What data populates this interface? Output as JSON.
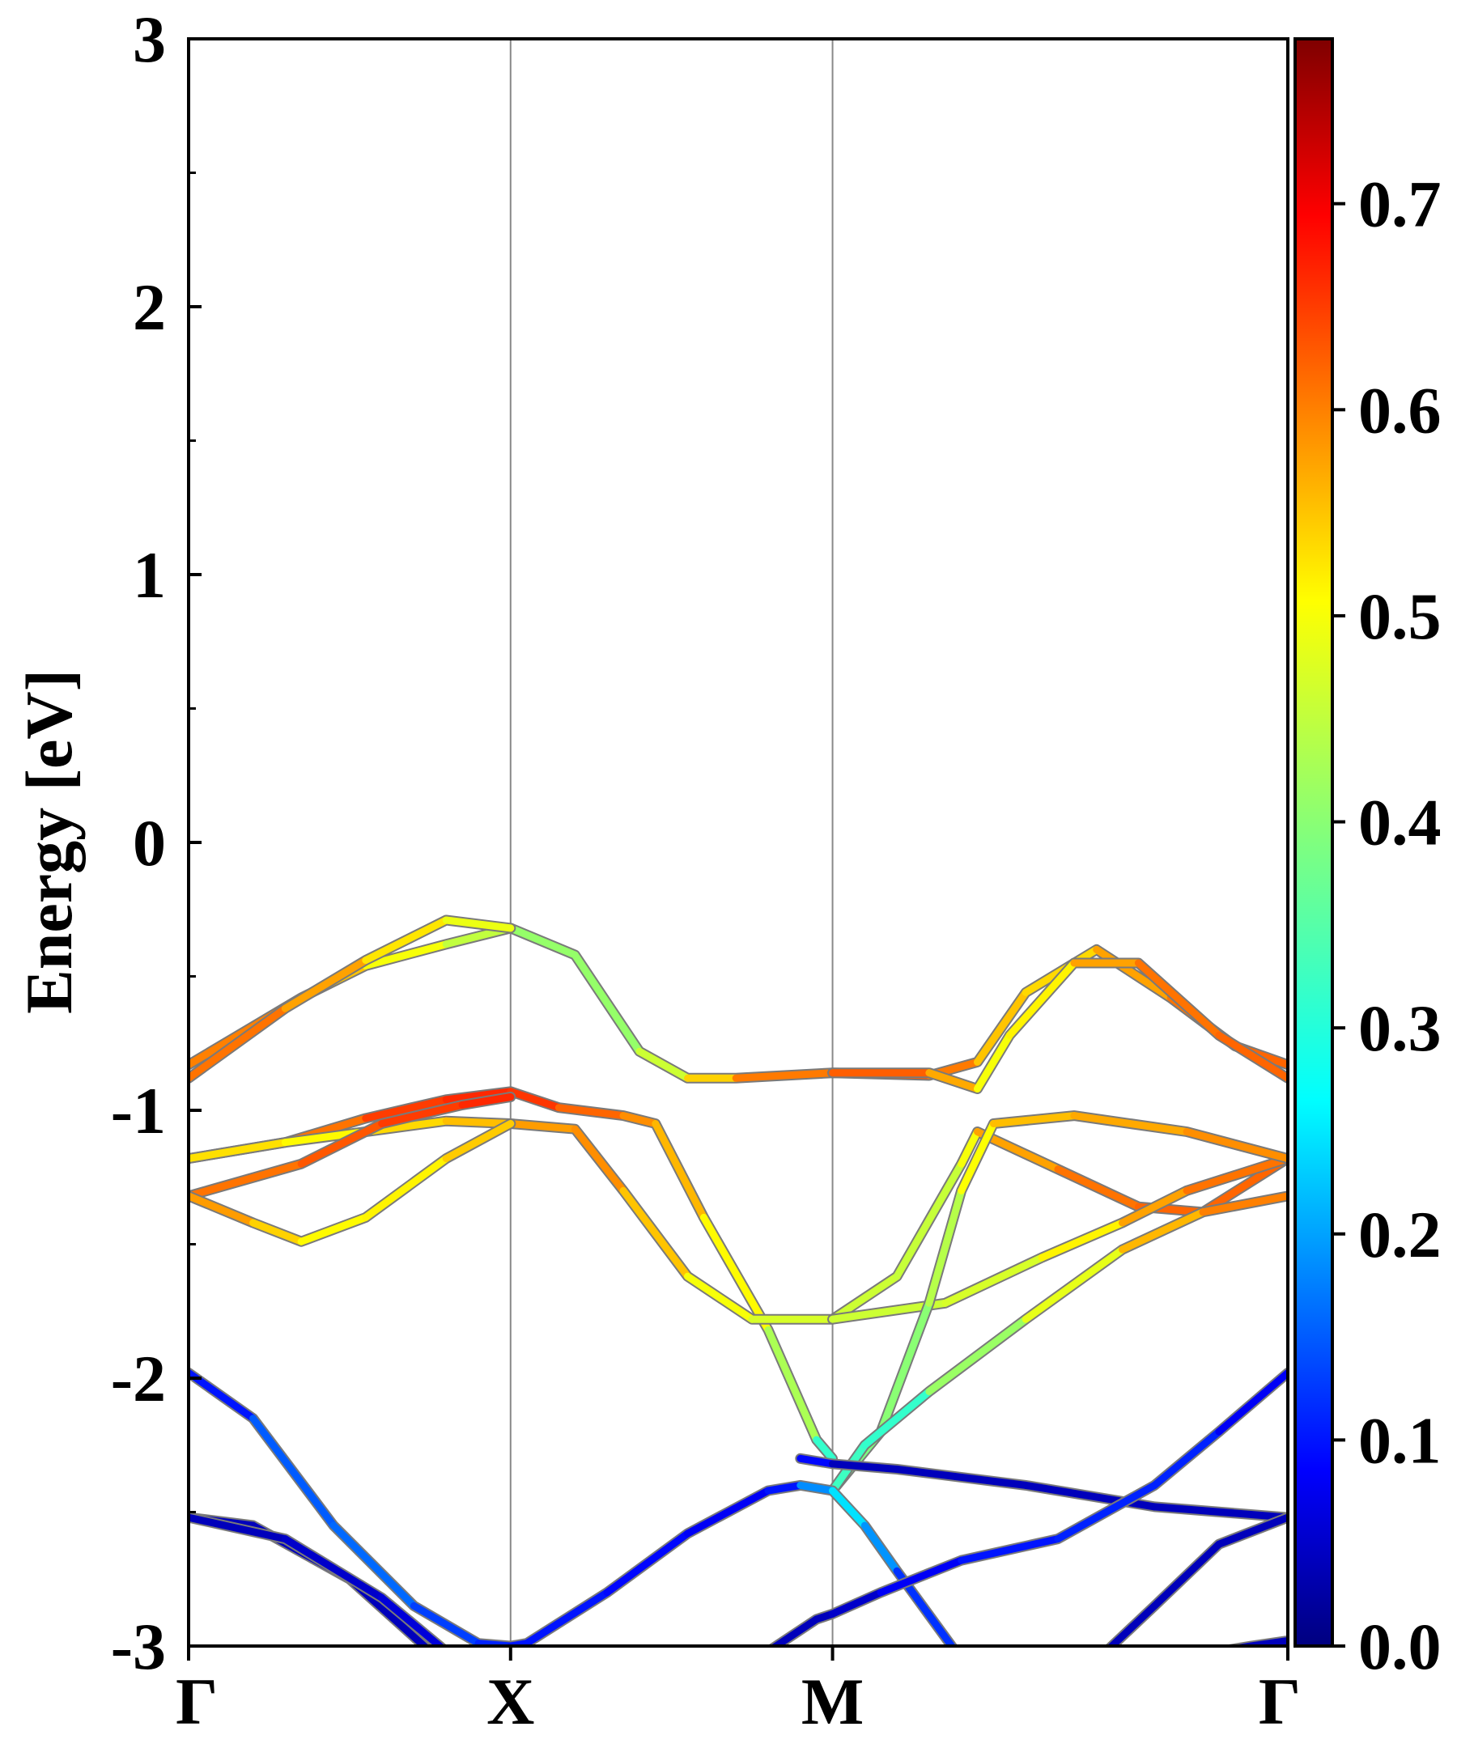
{
  "chart_data": {
    "type": "line",
    "ylabel": "Energy [eV]",
    "xlabel": "",
    "ylim": [
      -3,
      3
    ],
    "yticks": [
      "3",
      "2",
      "1",
      "0",
      "-1",
      "-2",
      "-3"
    ],
    "kpath": [
      "Γ",
      "X",
      "M",
      "Γ"
    ],
    "kpath_positions": [
      0,
      1,
      2,
      3.414
    ],
    "vertical_lines_at": [
      1,
      2
    ],
    "colorbar": {
      "colormap": "jet",
      "range": [
        0.0,
        0.78
      ],
      "ticks": [
        "0.0",
        "0.1",
        "0.2",
        "0.3",
        "0.4",
        "0.5",
        "0.6",
        "0.7"
      ],
      "tick_values": [
        0.0,
        0.1,
        0.2,
        0.3,
        0.4,
        0.5,
        0.6,
        0.7
      ]
    },
    "series": [
      {
        "points": [
          [
            0,
            -0.83,
            0.62
          ],
          [
            0.35,
            -0.58,
            0.58
          ],
          [
            0.55,
            -0.46,
            0.52
          ],
          [
            0.8,
            -0.38,
            0.48
          ],
          [
            1,
            -0.32,
            0.42
          ],
          [
            1.2,
            -0.42,
            0.4
          ],
          [
            1.4,
            -0.78,
            0.42
          ],
          [
            1.55,
            -0.88,
            0.5
          ],
          [
            1.7,
            -0.88,
            0.58
          ],
          [
            2,
            -0.86,
            0.63
          ],
          [
            2.3,
            -0.87,
            0.63
          ],
          [
            2.45,
            -0.82,
            0.58
          ],
          [
            2.6,
            -0.56,
            0.52
          ],
          [
            2.82,
            -0.4,
            0.55
          ],
          [
            3.05,
            -0.58,
            0.6
          ],
          [
            3.25,
            -0.76,
            0.62
          ],
          [
            3.414,
            -0.83,
            0.62
          ]
        ]
      },
      {
        "points": [
          [
            0,
            -0.88,
            0.62
          ],
          [
            0.3,
            -0.62,
            0.6
          ],
          [
            0.55,
            -0.44,
            0.55
          ],
          [
            0.8,
            -0.29,
            0.5
          ],
          [
            1,
            -0.32,
            0.48
          ]
        ]
      },
      {
        "points": [
          [
            2,
            -0.86,
            0.63
          ],
          [
            2.3,
            -0.86,
            0.62
          ],
          [
            2.45,
            -0.92,
            0.52
          ],
          [
            2.55,
            -0.72,
            0.48
          ],
          [
            2.75,
            -0.45,
            0.55
          ],
          [
            2.95,
            -0.45,
            0.6
          ],
          [
            3.2,
            -0.72,
            0.62
          ],
          [
            3.414,
            -0.88,
            0.62
          ]
        ]
      },
      {
        "points": [
          [
            0,
            -1.18,
            0.56
          ],
          [
            0.3,
            -1.12,
            0.58
          ],
          [
            0.55,
            -1.03,
            0.64
          ],
          [
            0.8,
            -0.96,
            0.66
          ],
          [
            1,
            -0.93,
            0.67
          ],
          [
            1.15,
            -0.99,
            0.64
          ],
          [
            1.35,
            -1.02,
            0.6
          ],
          [
            1.45,
            -1.05,
            0.58
          ],
          [
            1.6,
            -1.4,
            0.54
          ],
          [
            1.8,
            -1.82,
            0.48
          ],
          [
            1.95,
            -2.23,
            0.38
          ],
          [
            2.0,
            -2.3,
            0.25
          ]
        ]
      },
      {
        "points": [
          [
            0,
            -1.18,
            0.56
          ],
          [
            0.3,
            -1.12,
            0.5
          ],
          [
            0.55,
            -1.08,
            0.52
          ],
          [
            0.8,
            -1.04,
            0.55
          ],
          [
            1,
            -1.05,
            0.56
          ],
          [
            1.2,
            -1.07,
            0.6
          ],
          [
            1.35,
            -1.3,
            0.58
          ],
          [
            1.55,
            -1.62,
            0.52
          ],
          [
            1.75,
            -1.78,
            0.48
          ],
          [
            2,
            -1.78,
            0.46
          ],
          [
            2.2,
            -1.62,
            0.46
          ],
          [
            2.4,
            -1.2,
            0.45
          ],
          [
            2.45,
            -1.08,
            0.55
          ],
          [
            2.7,
            -1.22,
            0.6
          ],
          [
            2.95,
            -1.36,
            0.62
          ],
          [
            3.15,
            -1.38,
            0.62
          ],
          [
            3.414,
            -1.18,
            0.62
          ]
        ]
      },
      {
        "points": [
          [
            0,
            -1.32,
            0.6
          ],
          [
            0.35,
            -1.2,
            0.62
          ],
          [
            0.6,
            -1.05,
            0.64
          ],
          [
            0.85,
            -0.98,
            0.66
          ],
          [
            1,
            -0.95,
            0.67
          ]
        ]
      },
      {
        "points": [
          [
            0,
            -1.32,
            0.6
          ],
          [
            0.2,
            -1.42,
            0.56
          ],
          [
            0.35,
            -1.49,
            0.52
          ],
          [
            0.55,
            -1.4,
            0.5
          ],
          [
            0.8,
            -1.18,
            0.53
          ],
          [
            1,
            -1.05,
            0.56
          ]
        ]
      },
      {
        "points": [
          [
            2,
            -1.78,
            0.46
          ],
          [
            2.35,
            -1.72,
            0.46
          ],
          [
            2.65,
            -1.55,
            0.48
          ],
          [
            2.9,
            -1.42,
            0.55
          ],
          [
            3.1,
            -1.3,
            0.6
          ],
          [
            3.414,
            -1.18,
            0.62
          ]
        ]
      },
      {
        "points": [
          [
            2,
            -2.42,
            0.4
          ],
          [
            2.15,
            -2.2,
            0.38
          ],
          [
            2.3,
            -1.72,
            0.42
          ],
          [
            2.4,
            -1.3,
            0.46
          ],
          [
            2.5,
            -1.05,
            0.55
          ],
          [
            2.75,
            -1.02,
            0.56
          ],
          [
            3.1,
            -1.08,
            0.58
          ],
          [
            3.414,
            -1.18,
            0.6
          ]
        ]
      },
      {
        "points": [
          [
            2,
            -2.42,
            0.4
          ],
          [
            2.1,
            -2.25,
            0.25
          ],
          [
            2.3,
            -2.05,
            0.38
          ],
          [
            2.6,
            -1.78,
            0.45
          ],
          [
            2.9,
            -1.52,
            0.52
          ],
          [
            3.15,
            -1.38,
            0.6
          ],
          [
            3.414,
            -1.32,
            0.6
          ]
        ]
      },
      {
        "points": [
          [
            0,
            -1.98,
            0.08
          ],
          [
            0.2,
            -2.15,
            0.12
          ],
          [
            0.45,
            -2.55,
            0.18
          ],
          [
            0.7,
            -2.85,
            0.14
          ],
          [
            0.9,
            -2.99,
            0.12
          ],
          [
            1,
            -3.0,
            0.1
          ],
          [
            1.05,
            -2.99,
            0.1
          ],
          [
            1.3,
            -2.8,
            0.1
          ],
          [
            1.55,
            -2.58,
            0.08
          ],
          [
            1.8,
            -2.42,
            0.08
          ],
          [
            1.9,
            -2.4,
            0.12
          ],
          [
            2,
            -2.42,
            0.25
          ],
          [
            2.1,
            -2.55,
            0.24
          ],
          [
            2.2,
            -2.72,
            0.14
          ],
          [
            2.4,
            -3.05,
            0.1
          ]
        ]
      },
      {
        "points": [
          [
            1.9,
            -2.3,
            0.14
          ],
          [
            2,
            -2.32,
            0.04
          ],
          [
            2.2,
            -2.34,
            0.04
          ],
          [
            2.6,
            -2.4,
            0.04
          ],
          [
            3.0,
            -2.48,
            0.04
          ],
          [
            3.414,
            -2.52,
            0.04
          ]
        ]
      },
      {
        "points": [
          [
            0,
            -2.52,
            0.04
          ],
          [
            0.2,
            -2.55,
            0.04
          ],
          [
            0.5,
            -2.75,
            0.04
          ],
          [
            0.75,
            -3.02,
            0.04
          ]
        ]
      },
      {
        "points": [
          [
            0,
            -2.52,
            0.04
          ],
          [
            0.3,
            -2.6,
            0.04
          ],
          [
            0.6,
            -2.82,
            0.06
          ],
          [
            0.8,
            -3.02,
            0.06
          ]
        ]
      },
      {
        "points": [
          [
            1.8,
            -3.02,
            0.04
          ],
          [
            1.95,
            -2.9,
            0.04
          ],
          [
            2,
            -2.88,
            0.04
          ],
          [
            2.15,
            -2.8,
            0.06
          ],
          [
            2.4,
            -2.68,
            0.1
          ],
          [
            2.7,
            -2.6,
            0.1
          ],
          [
            3.0,
            -2.4,
            0.12
          ],
          [
            3.2,
            -2.2,
            0.1
          ],
          [
            3.414,
            -1.98,
            0.06
          ]
        ]
      },
      {
        "points": [
          [
            2.85,
            -3.02,
            0.04
          ],
          [
            3.0,
            -2.85,
            0.04
          ],
          [
            3.2,
            -2.62,
            0.04
          ],
          [
            3.414,
            -2.52,
            0.04
          ]
        ]
      },
      {
        "points": [
          [
            3.2,
            -3.02,
            0.04
          ],
          [
            3.3,
            -3.0,
            0.04
          ],
          [
            3.414,
            -2.98,
            0.04
          ]
        ]
      }
    ]
  }
}
